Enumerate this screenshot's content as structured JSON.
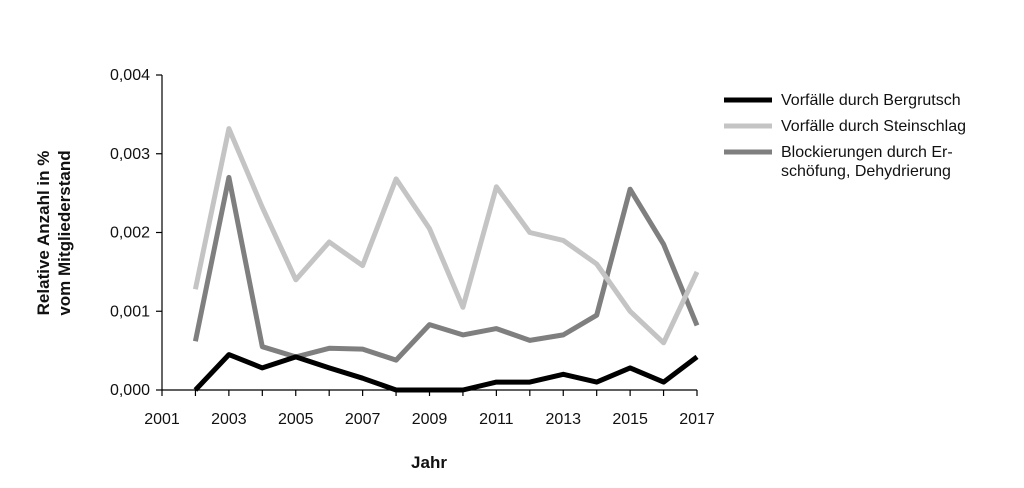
{
  "chart_data": {
    "type": "line",
    "title": "",
    "xlabel": "Jahr",
    "ylabel_lines": [
      "Relative Anzahl in %",
      "vom Mitgliederstand"
    ],
    "xlim": [
      2001,
      2017
    ],
    "ylim": [
      0,
      0.004
    ],
    "x_ticks": [
      "2001",
      "2003",
      "2005",
      "2007",
      "2009",
      "2011",
      "2013",
      "2015",
      "2017"
    ],
    "y_ticks": [
      "0,000",
      "0,001",
      "0,002",
      "0,003",
      "0,004"
    ],
    "x": [
      2002,
      2003,
      2004,
      2005,
      2006,
      2007,
      2008,
      2009,
      2010,
      2011,
      2012,
      2013,
      2014,
      2015,
      2016,
      2017
    ],
    "grid": false,
    "legend_position": "right",
    "series": [
      {
        "name": "Vorfälle durch Bergrutsch",
        "color": "#000000",
        "values": [
          0.0,
          0.00045,
          0.00028,
          0.00042,
          0.00028,
          0.00015,
          0.0,
          0.0,
          0.0,
          0.0001,
          0.0001,
          0.0002,
          0.0001,
          0.00028,
          0.0001,
          0.00042
        ]
      },
      {
        "name": "Vorfälle durch Steinschlag",
        "color": "#c4c4c4",
        "values": [
          0.00128,
          0.00332,
          0.00232,
          0.0014,
          0.00188,
          0.00158,
          0.00268,
          0.00205,
          0.00105,
          0.00258,
          0.002,
          0.0019,
          0.0016,
          0.001,
          0.0006,
          0.0015
        ]
      },
      {
        "name": "Blockierungen durch Erschöfung, Dehydrierung",
        "legend_lines": [
          "Blockierungen durch Er-",
          "schöfung, Dehydrierung"
        ],
        "color": "#7f7f7f",
        "values": [
          0.00062,
          0.0027,
          0.00055,
          0.00042,
          0.00053,
          0.00052,
          0.00038,
          0.00083,
          0.0007,
          0.00078,
          0.00063,
          0.0007,
          0.00095,
          0.00255,
          0.00185,
          0.00082
        ]
      }
    ]
  }
}
